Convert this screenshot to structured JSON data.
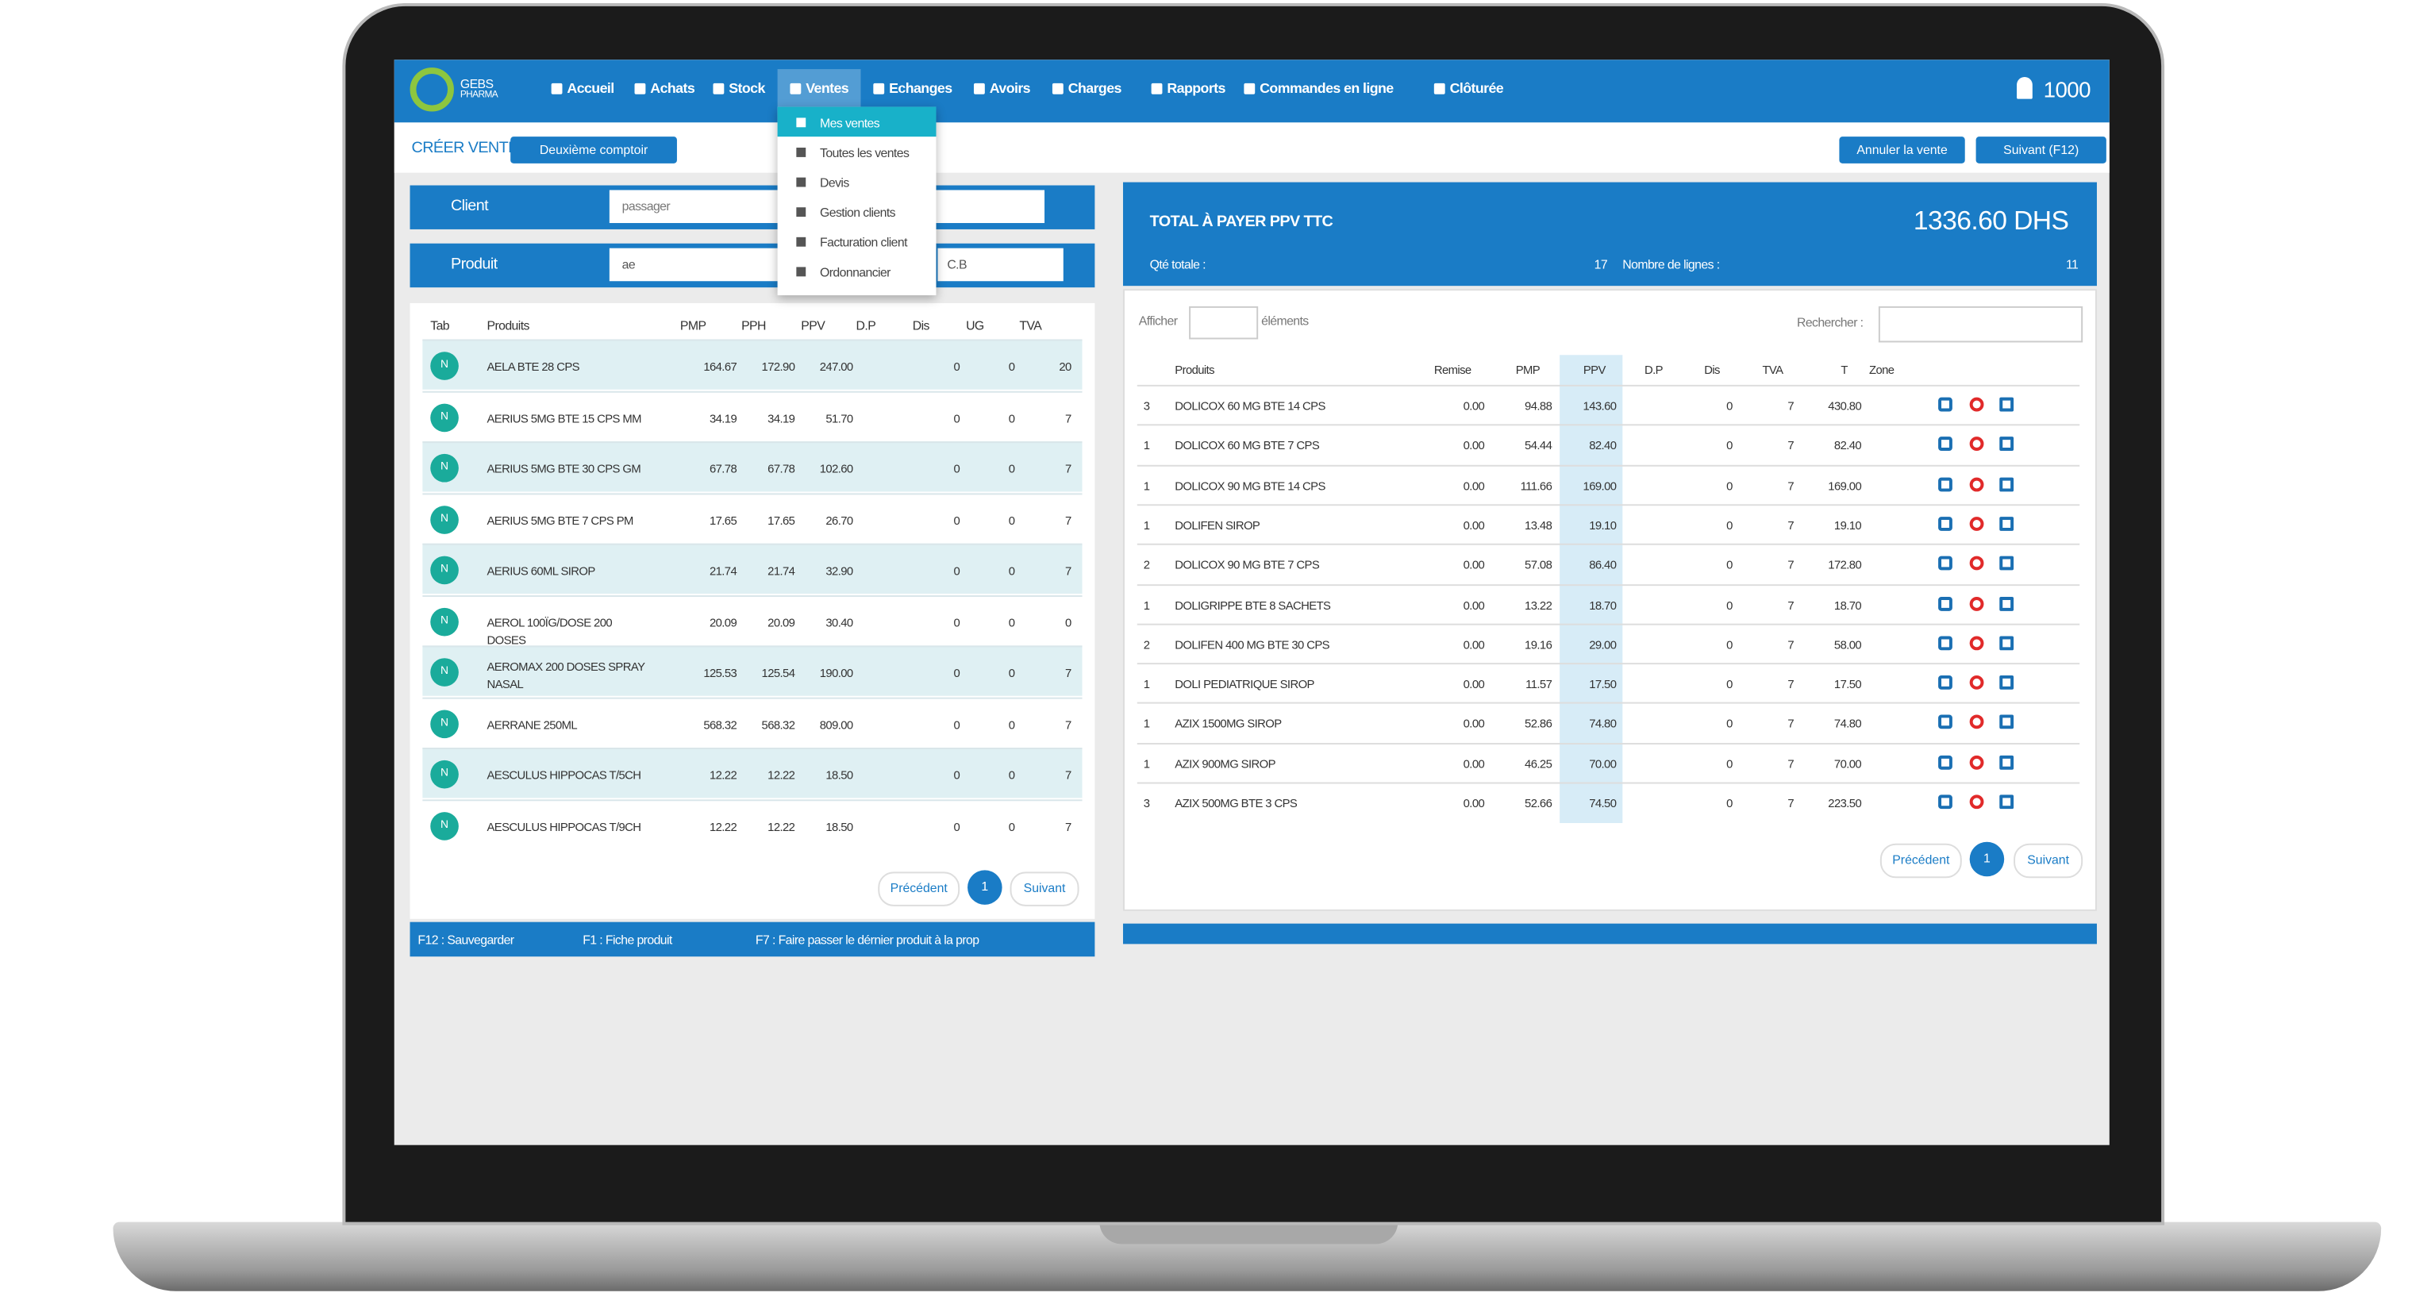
{
  "header": {
    "logo_top": "GEBS",
    "logo_bottom": "PHARMA",
    "nav": [
      "Accueil",
      "Achats",
      "Stock",
      "Ventes",
      "Echanges",
      "Avoirs",
      "Charges",
      "Rapports",
      "Commandes en ligne",
      "Clôturée"
    ],
    "user": "1000"
  },
  "dropdown": [
    "Mes ventes",
    "Toutes les ventes",
    "Devis",
    "Gestion clients",
    "Facturation client",
    "Ordonnancier"
  ],
  "toolbar": {
    "title": "CRÉER VENTE",
    "second_counter": "Deuxième comptoir",
    "cancel": "Annuler la vente",
    "next": "Suivant (F12)"
  },
  "form": {
    "client_label": "Client",
    "client_value": "passager",
    "product_label": "Produit",
    "product_value": "ae",
    "select_value": "C.B"
  },
  "left_table": {
    "headers": [
      "Tab",
      "Produits",
      "PMP",
      "PPH",
      "PPV",
      "D.P",
      "Dis",
      "UG",
      "TVA"
    ],
    "rows": [
      {
        "tab": "N",
        "name": "AELA BTE 28 CPS",
        "pmp": "164.67",
        "pph": "172.90",
        "ppv": "247.00",
        "dis": "0",
        "ug": "0",
        "tva": "20"
      },
      {
        "tab": "N",
        "name": "AERIUS 5MG BTE 15 CPS MM",
        "pmp": "34.19",
        "pph": "34.19",
        "ppv": "51.70",
        "dis": "0",
        "ug": "0",
        "tva": "7"
      },
      {
        "tab": "N",
        "name": "AERIUS 5MG BTE 30 CPS GM",
        "pmp": "67.78",
        "pph": "67.78",
        "ppv": "102.60",
        "dis": "0",
        "ug": "0",
        "tva": "7"
      },
      {
        "tab": "N",
        "name": "AERIUS 5MG BTE 7 CPS PM",
        "pmp": "17.65",
        "pph": "17.65",
        "ppv": "26.70",
        "dis": "0",
        "ug": "0",
        "tva": "7"
      },
      {
        "tab": "N",
        "name": "AERIUS 60ML SIROP",
        "pmp": "21.74",
        "pph": "21.74",
        "ppv": "32.90",
        "dis": "0",
        "ug": "0",
        "tva": "7"
      },
      {
        "tab": "N",
        "name": "AEROL 100ÏG/DOSE 200 DOSES",
        "pmp": "20.09",
        "pph": "20.09",
        "ppv": "30.40",
        "dis": "0",
        "ug": "0",
        "tva": "0"
      },
      {
        "tab": "N",
        "name": "AEROMAX 200 DOSES SPRAY NASAL",
        "pmp": "125.53",
        "pph": "125.54",
        "ppv": "190.00",
        "dis": "0",
        "ug": "0",
        "tva": "7"
      },
      {
        "tab": "N",
        "name": "AERRANE 250ML",
        "pmp": "568.32",
        "pph": "568.32",
        "ppv": "809.00",
        "dis": "0",
        "ug": "0",
        "tva": "7"
      },
      {
        "tab": "N",
        "name": "AESCULUS HIPPOCAS T/5CH",
        "pmp": "12.22",
        "pph": "12.22",
        "ppv": "18.50",
        "dis": "0",
        "ug": "0",
        "tva": "7"
      },
      {
        "tab": "N",
        "name": "AESCULUS HIPPOCAS T/9CH",
        "pmp": "12.22",
        "pph": "12.22",
        "ppv": "18.50",
        "dis": "0",
        "ug": "0",
        "tva": "7"
      }
    ],
    "prev": "Précédent",
    "page": "1",
    "next": "Suivant"
  },
  "shortcuts": [
    "F12 : Sauvegarder",
    "F1 : Fiche produit",
    "F7 : Faire passer le dérnier produit à la prop"
  ],
  "summary": {
    "title": "TOTAL À PAYER PPV TTC",
    "total": "1336.60 DHS",
    "qty_label": "Qté totale :",
    "qty": "17",
    "lines_label": "Nombre de lignes :",
    "lines": "11"
  },
  "right_table": {
    "show_label": "Afficher",
    "elements_label": "éléments",
    "search_label": "Rechercher :",
    "headers": [
      "Produits",
      "Remise",
      "PMP",
      "PPV",
      "D.P",
      "Dis",
      "TVA",
      "T",
      "Zone"
    ],
    "rows": [
      {
        "qty": "3",
        "name": "DOLICOX 60 MG BTE 14 CPS",
        "remise": "0.00",
        "pmp": "94.88",
        "ppv": "143.60",
        "dis": "0",
        "tva": "7",
        "t": "430.80"
      },
      {
        "qty": "1",
        "name": "DOLICOX 60 MG BTE 7 CPS",
        "remise": "0.00",
        "pmp": "54.44",
        "ppv": "82.40",
        "dis": "0",
        "tva": "7",
        "t": "82.40"
      },
      {
        "qty": "1",
        "name": "DOLICOX 90 MG BTE 14 CPS",
        "remise": "0.00",
        "pmp": "111.66",
        "ppv": "169.00",
        "dis": "0",
        "tva": "7",
        "t": "169.00"
      },
      {
        "qty": "1",
        "name": "DOLIFEN SIROP",
        "remise": "0.00",
        "pmp": "13.48",
        "ppv": "19.10",
        "dis": "0",
        "tva": "7",
        "t": "19.10"
      },
      {
        "qty": "2",
        "name": "DOLICOX 90 MG BTE 7 CPS",
        "remise": "0.00",
        "pmp": "57.08",
        "ppv": "86.40",
        "dis": "0",
        "tva": "7",
        "t": "172.80"
      },
      {
        "qty": "1",
        "name": "DOLIGRIPPE BTE 8 SACHETS",
        "remise": "0.00",
        "pmp": "13.22",
        "ppv": "18.70",
        "dis": "0",
        "tva": "7",
        "t": "18.70"
      },
      {
        "qty": "2",
        "name": "DOLIFEN 400 MG BTE 30 CPS",
        "remise": "0.00",
        "pmp": "19.16",
        "ppv": "29.00",
        "dis": "0",
        "tva": "7",
        "t": "58.00"
      },
      {
        "qty": "1",
        "name": "DOLI PEDIATRIQUE SIROP",
        "remise": "0.00",
        "pmp": "11.57",
        "ppv": "17.50",
        "dis": "0",
        "tva": "7",
        "t": "17.50"
      },
      {
        "qty": "1",
        "name": "AZIX 1500MG SIROP",
        "remise": "0.00",
        "pmp": "52.86",
        "ppv": "74.80",
        "dis": "0",
        "tva": "7",
        "t": "74.80"
      },
      {
        "qty": "1",
        "name": "AZIX 900MG SIROP",
        "remise": "0.00",
        "pmp": "46.25",
        "ppv": "70.00",
        "dis": "0",
        "tva": "7",
        "t": "70.00"
      },
      {
        "qty": "3",
        "name": "AZIX 500MG BTE 3 CPS",
        "remise": "0.00",
        "pmp": "52.66",
        "ppv": "74.50",
        "dis": "0",
        "tva": "7",
        "t": "223.50"
      }
    ],
    "prev": "Précédent",
    "page": "1",
    "next": "Suivant"
  }
}
